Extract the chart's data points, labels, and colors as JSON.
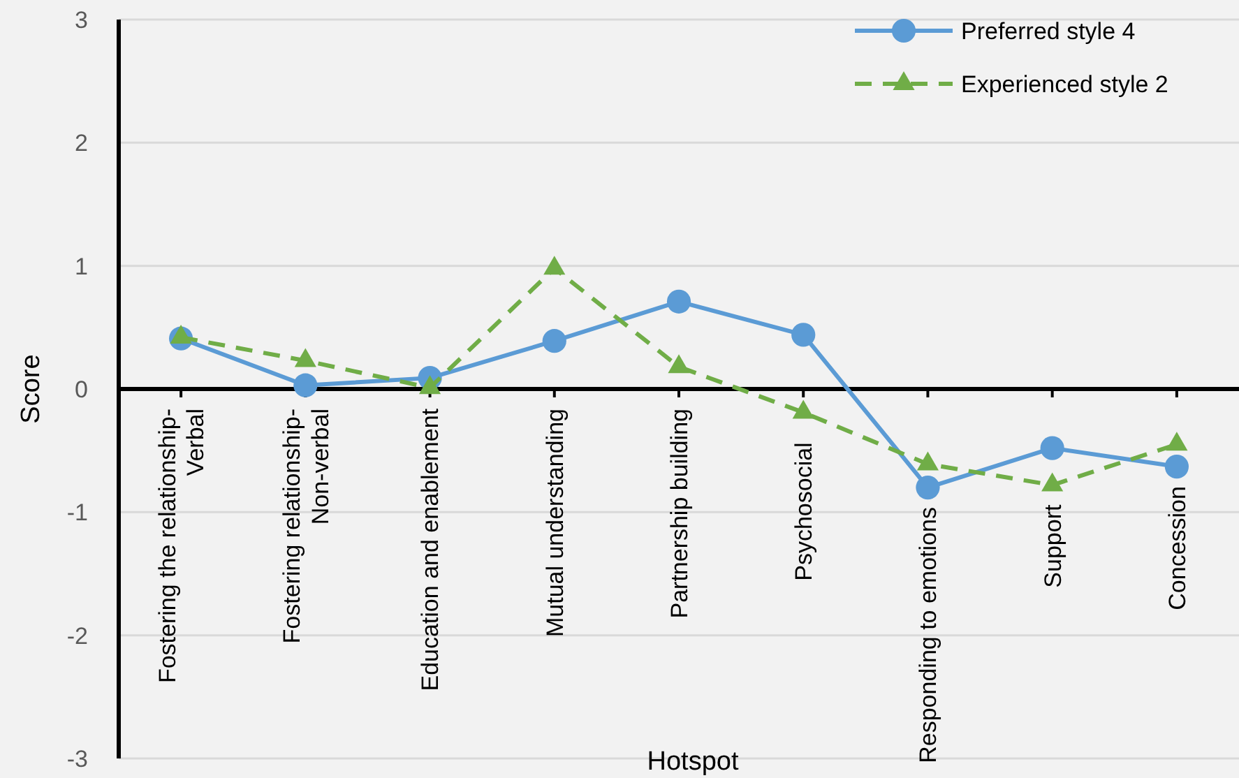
{
  "chart_data": {
    "type": "line",
    "xlabel": "Hotspot",
    "ylabel": "Score",
    "categories": [
      "Fostering the relationship-Verbal",
      "Fostering relationship-Non-verbal",
      "Education and enablement",
      "Mutual understanding",
      "Partnership building",
      "Psychosocial",
      "Responding to emotions",
      "Support",
      "Concession"
    ],
    "series": [
      {
        "name": "Preferred style 4",
        "color": "#5b9bd5",
        "marker": "circle",
        "line_style": "solid",
        "values": [
          0.41,
          0.03,
          0.09,
          0.39,
          0.71,
          0.44,
          -0.8,
          -0.48,
          -0.63
        ]
      },
      {
        "name": "Experienced style 2",
        "color": "#70ad47",
        "marker": "triangle",
        "line_style": "dashed",
        "values": [
          0.42,
          0.23,
          0.01,
          0.98,
          0.18,
          -0.19,
          -0.61,
          -0.78,
          -0.45
        ]
      }
    ],
    "ylim": [
      -3,
      3
    ],
    "yticks": [
      -3,
      -2,
      -1,
      0,
      1,
      2,
      3
    ],
    "grid": "y",
    "legend": "top right"
  }
}
